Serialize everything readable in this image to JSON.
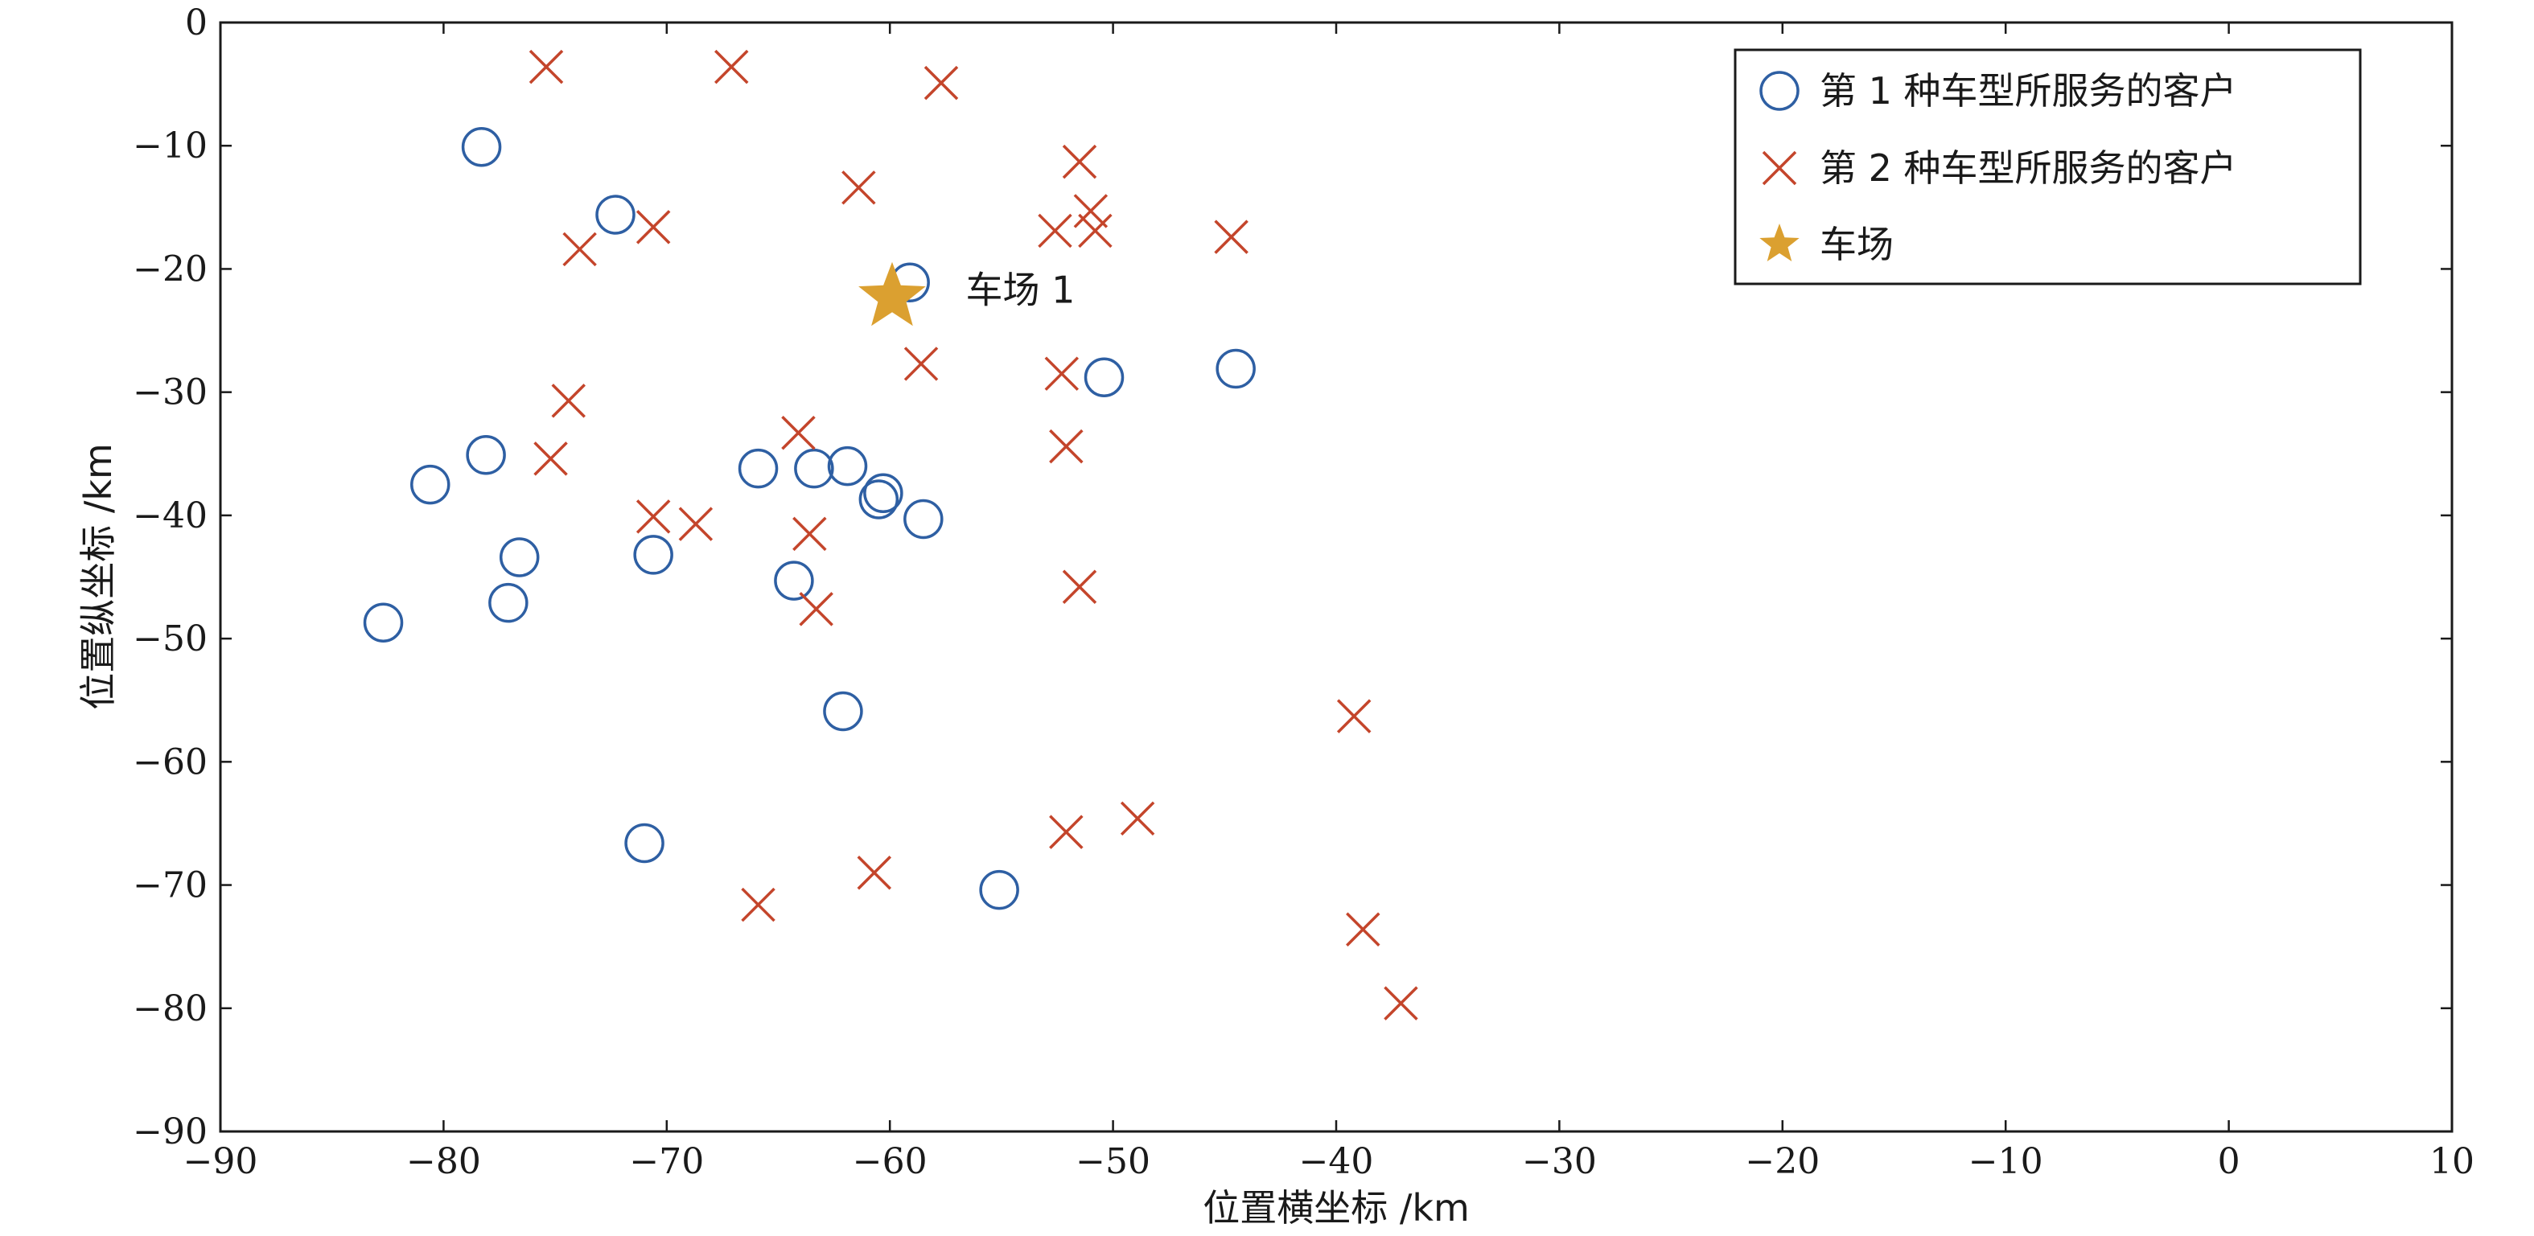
{
  "chart_data": {
    "type": "scatter",
    "xlabel": "位置横坐标 /km",
    "ylabel": "位置纵坐标 /km",
    "xlim": [
      -90,
      10
    ],
    "ylim": [
      -90,
      0
    ],
    "xticks": [
      -90,
      -80,
      -70,
      -60,
      -50,
      -40,
      -30,
      -20,
      -10,
      0,
      10
    ],
    "yticks": [
      0,
      -10,
      -20,
      -30,
      -40,
      -50,
      -60,
      -70,
      -80,
      -90
    ],
    "grid": false,
    "legend_position": "top-right",
    "series": [
      {
        "name": "第 1 种车型所服务的客户",
        "marker": "circle",
        "color": "#2e5fa3",
        "points": [
          [
            -78.3,
            -10.1
          ],
          [
            -72.3,
            -15.6
          ],
          [
            -59.1,
            -21.1
          ],
          [
            -50.4,
            -28.8
          ],
          [
            -44.5,
            -28.1
          ],
          [
            -78.1,
            -35.1
          ],
          [
            -80.6,
            -37.5
          ],
          [
            -76.6,
            -43.4
          ],
          [
            -77.1,
            -47.1
          ],
          [
            -82.7,
            -48.7
          ],
          [
            -70.6,
            -43.2
          ],
          [
            -65.9,
            -36.2
          ],
          [
            -63.4,
            -36.2
          ],
          [
            -61.9,
            -36.0
          ],
          [
            -60.3,
            -38.2
          ],
          [
            -60.5,
            -38.7
          ],
          [
            -58.5,
            -40.3
          ],
          [
            -64.3,
            -45.3
          ],
          [
            -62.1,
            -55.9
          ],
          [
            -71.0,
            -66.6
          ],
          [
            -55.1,
            -70.4
          ]
        ]
      },
      {
        "name": "第 2 种车型所服务的客户",
        "marker": "x",
        "color": "#c4452b",
        "points": [
          [
            -75.4,
            -3.6
          ],
          [
            -67.1,
            -3.6
          ],
          [
            -57.7,
            -4.9
          ],
          [
            -61.4,
            -13.4
          ],
          [
            -51.5,
            -11.3
          ],
          [
            -51.0,
            -15.3
          ],
          [
            -52.6,
            -16.9
          ],
          [
            -50.8,
            -16.9
          ],
          [
            -44.7,
            -17.4
          ],
          [
            -73.9,
            -18.4
          ],
          [
            -70.6,
            -16.6
          ],
          [
            -58.6,
            -27.7
          ],
          [
            -52.3,
            -28.5
          ],
          [
            -74.4,
            -30.7
          ],
          [
            -75.2,
            -35.4
          ],
          [
            -64.1,
            -33.3
          ],
          [
            -52.1,
            -34.4
          ],
          [
            -70.6,
            -40.1
          ],
          [
            -68.7,
            -40.7
          ],
          [
            -63.6,
            -41.5
          ],
          [
            -63.3,
            -47.6
          ],
          [
            -51.5,
            -45.8
          ],
          [
            -39.2,
            -56.3
          ],
          [
            -48.9,
            -64.6
          ],
          [
            -52.1,
            -65.7
          ],
          [
            -60.7,
            -69.0
          ],
          [
            -65.9,
            -71.6
          ],
          [
            -38.8,
            -73.6
          ],
          [
            -37.1,
            -79.6
          ]
        ]
      },
      {
        "name": "车场",
        "marker": "star",
        "color": "#dba030",
        "points": [
          [
            -59.9,
            -22.3
          ]
        ]
      }
    ],
    "annotations": [
      {
        "text": "车场 1",
        "x": -56.6,
        "y": -21.7
      }
    ]
  }
}
